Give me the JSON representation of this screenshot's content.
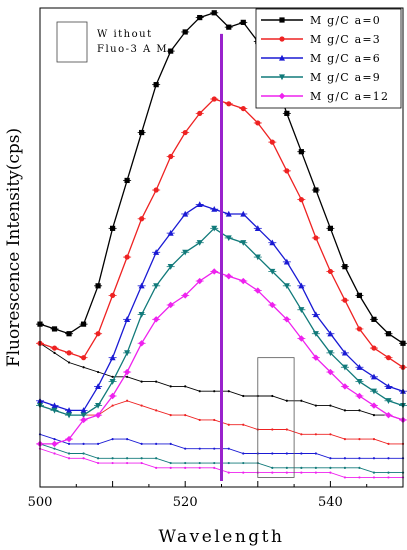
{
  "chart_data": {
    "type": "line",
    "title": "",
    "xlabel": "Wavelength",
    "ylabel": "Fluorescence Intensity(cps)",
    "xlim": [
      500,
      550
    ],
    "ylim": [
      0,
      100
    ],
    "xticks": [
      500,
      520,
      540
    ],
    "x": [
      500,
      502,
      504,
      506,
      508,
      510,
      512,
      514,
      516,
      518,
      520,
      522,
      524,
      526,
      528,
      530,
      532,
      534,
      536,
      538,
      540,
      542,
      544,
      546,
      548,
      550
    ],
    "series": [
      {
        "name": "M g/C a=0",
        "color": "#000000",
        "marker": "square",
        "values": [
          34,
          33,
          32,
          34,
          42,
          54,
          64,
          74,
          84,
          91,
          95,
          98,
          99,
          96,
          97,
          93,
          87,
          78,
          70,
          62,
          54,
          46,
          40,
          35,
          32,
          30
        ]
      },
      {
        "name": "M g/C a=3",
        "color": "#ee2222",
        "marker": "circle",
        "values": [
          30,
          29,
          28,
          27,
          32,
          40,
          48,
          56,
          62,
          69,
          74,
          78,
          81,
          80,
          79,
          76,
          72,
          66,
          60,
          52,
          45,
          39,
          33,
          29,
          27,
          25
        ]
      },
      {
        "name": "M g/C a=6",
        "color": "#1a1ad4",
        "marker": "triangle-up",
        "values": [
          18,
          17,
          16,
          16,
          21,
          27,
          35,
          42,
          49,
          53,
          57,
          59,
          58,
          57,
          57,
          54,
          51,
          47,
          42,
          36,
          32,
          28,
          25,
          23,
          21,
          20
        ]
      },
      {
        "name": "M g/C a=9",
        "color": "#117a7a",
        "marker": "triangle-down",
        "values": [
          17,
          16,
          15,
          15,
          17,
          22,
          28,
          36,
          42,
          46,
          49,
          51,
          54,
          52,
          51,
          48,
          45,
          42,
          37,
          32,
          28,
          25,
          22,
          20,
          18,
          17
        ]
      },
      {
        "name": "M g/C a=12",
        "color": "#ee22ee",
        "marker": "diamond",
        "values": [
          9,
          9,
          10,
          14,
          15,
          19,
          24,
          30,
          35,
          38,
          40,
          43,
          45,
          44,
          43,
          41,
          38,
          35,
          31,
          27,
          24,
          21,
          19,
          17,
          15,
          14
        ]
      }
    ],
    "baseline_series": [
      {
        "color": "#000000",
        "values": [
          30,
          28,
          26,
          25,
          24,
          23,
          23,
          22,
          22,
          21,
          21,
          20,
          20,
          20,
          19,
          19,
          19,
          18,
          18,
          17,
          17,
          16,
          16,
          15,
          15,
          14
        ]
      },
      {
        "color": "#ee2222",
        "values": [
          17,
          16,
          15,
          15,
          15,
          17,
          18,
          17,
          16,
          15,
          15,
          14,
          14,
          13,
          13,
          12,
          12,
          12,
          11,
          11,
          11,
          10,
          10,
          10,
          9,
          9
        ]
      },
      {
        "color": "#1a1ad4",
        "values": [
          11,
          10,
          9,
          9,
          9,
          10,
          10,
          9,
          9,
          9,
          8,
          8,
          8,
          8,
          7,
          7,
          7,
          7,
          7,
          7,
          6,
          6,
          6,
          6,
          6,
          6
        ]
      },
      {
        "color": "#117a7a",
        "values": [
          9,
          8,
          7,
          7,
          6,
          6,
          6,
          6,
          6,
          5,
          5,
          5,
          5,
          5,
          5,
          5,
          4,
          4,
          4,
          4,
          4,
          4,
          4,
          3,
          3,
          3
        ]
      },
      {
        "color": "#ee22ee",
        "values": [
          8,
          7,
          6,
          6,
          5,
          5,
          5,
          5,
          4,
          4,
          4,
          4,
          4,
          3,
          3,
          3,
          3,
          3,
          3,
          3,
          3,
          2,
          2,
          2,
          2,
          2
        ]
      }
    ],
    "vertical_line": {
      "x": 525,
      "color": "#9922cc"
    },
    "highlight_box": {
      "x": [
        530,
        535
      ],
      "y": [
        2,
        27
      ]
    },
    "annotation": {
      "lines": [
        "W ithout",
        "Fluo-3 A M"
      ]
    },
    "legend_position": "top-right",
    "grid": false
  }
}
